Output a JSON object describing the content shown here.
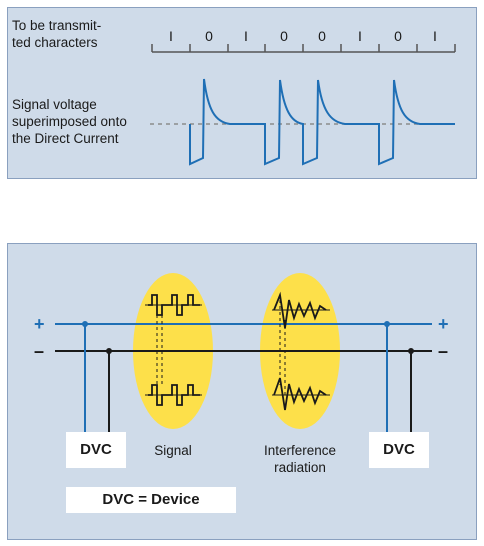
{
  "top_panel": {
    "chars_label": "To be transmit-\nted characters",
    "signal_label": "Signal voltage superimposed onto the Direct Current",
    "bits": [
      "I",
      "0",
      "I",
      "0",
      "0",
      "I",
      "0",
      "I"
    ]
  },
  "bottom_panel": {
    "plus_left": "+",
    "minus_left": "–",
    "plus_right": "+",
    "minus_right": "–",
    "dvc_left": "DVC",
    "dvc_right": "DVC",
    "signal_caption": "Signal",
    "interference_caption": "Interference radiation",
    "legend": "DVC = Device"
  },
  "colors": {
    "panel_bg": "#cfdbe9",
    "signal_line": "#1f6fb5",
    "highlight": "#fde04a"
  }
}
